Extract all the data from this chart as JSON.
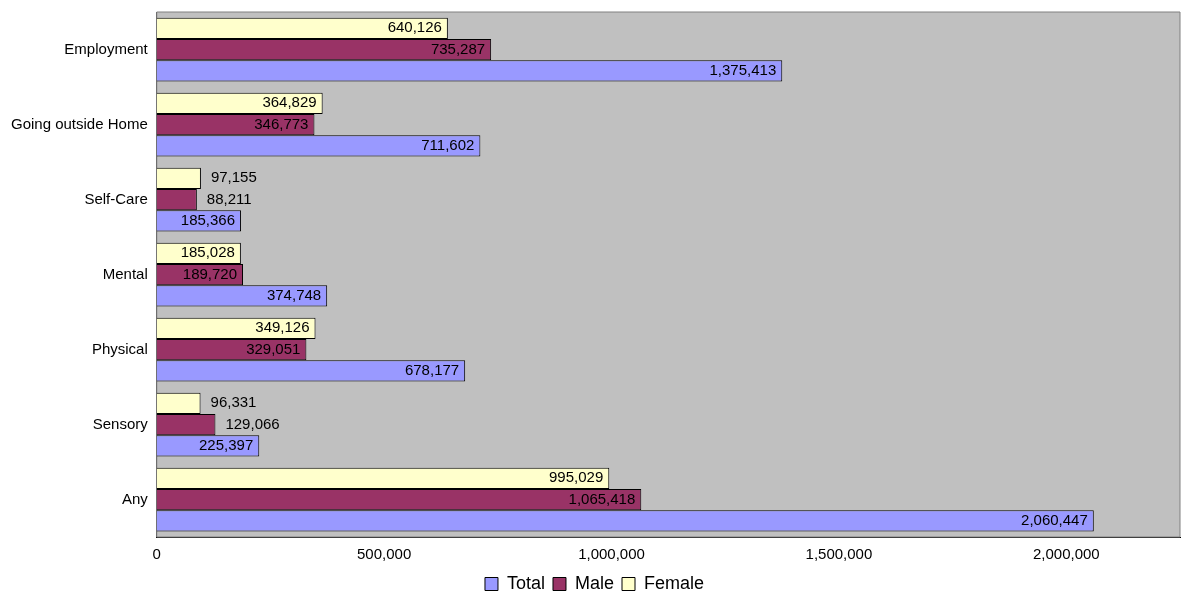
{
  "chart_data": {
    "type": "bar",
    "orientation": "horizontal",
    "categories": [
      "Employment",
      "Going outside Home",
      "Self-Care",
      "Mental",
      "Physical",
      "Sensory",
      "Any"
    ],
    "series": [
      {
        "name": "Total",
        "color": "#9999ff",
        "values": [
          1375413,
          711602,
          185366,
          374748,
          678177,
          225397,
          2060447
        ],
        "value_labels": [
          "1,375,413",
          "711,602",
          "185,366",
          "374,748",
          "678,177",
          "225,397",
          "2,060,447"
        ]
      },
      {
        "name": "Male",
        "color": "#993366",
        "values": [
          735287,
          346773,
          88211,
          189720,
          329051,
          129066,
          1065418
        ],
        "value_labels": [
          "735,287",
          "346,773",
          "88,211",
          "189,720",
          "329,051",
          "129,066",
          "1,065,418"
        ]
      },
      {
        "name": "Female",
        "color": "#ffffcc",
        "values": [
          640126,
          364829,
          97155,
          185028,
          349126,
          96331,
          995029
        ],
        "value_labels": [
          "640,126",
          "364,829",
          "97,155",
          "185,028",
          "349,126",
          "96,331",
          "995,029"
        ]
      }
    ],
    "xlim": [
      0,
      2250000
    ],
    "xticks": [
      {
        "value": 0,
        "label": "0"
      },
      {
        "value": 500000,
        "label": "500,000"
      },
      {
        "value": 1000000,
        "label": "1,000,000"
      },
      {
        "value": 1500000,
        "label": "1,500,000"
      },
      {
        "value": 2000000,
        "label": "2,000,000"
      },
      {
        "value": 2250000,
        "label": null
      }
    ],
    "grid": false,
    "legend": "bottom"
  }
}
